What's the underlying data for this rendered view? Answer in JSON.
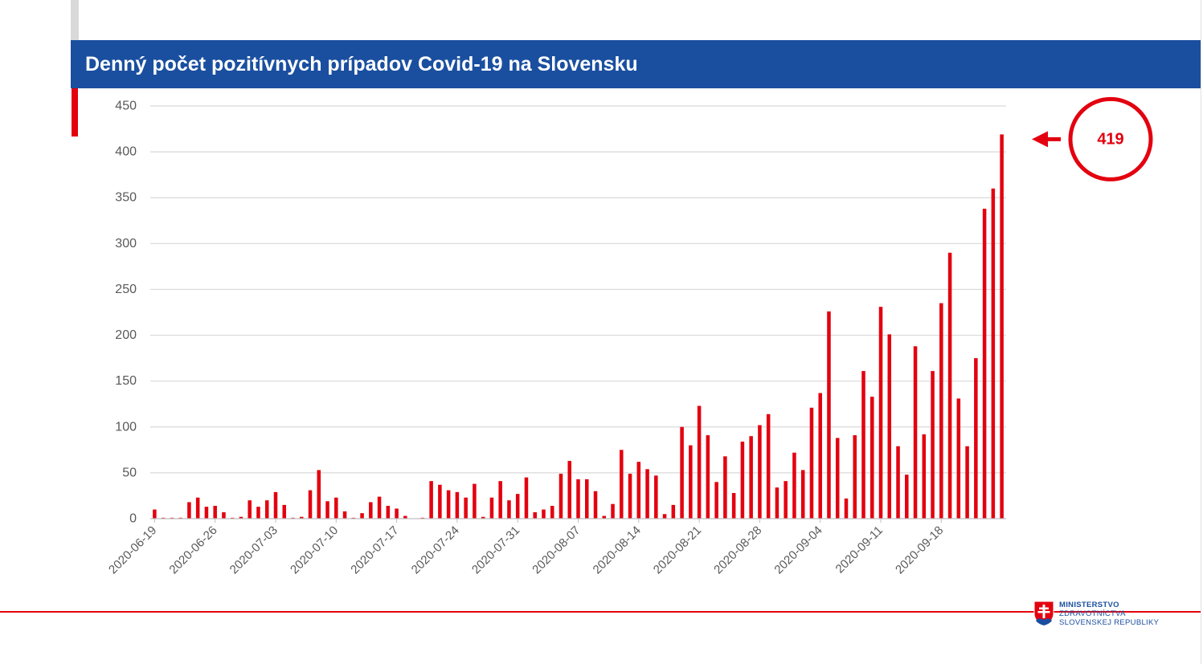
{
  "slide": {
    "title": "Denný počet pozitívnych prípadov Covid-19 na Slovensku",
    "logo": {
      "line1": "MINISTERSTVO",
      "line2": "ZDRAVOTNÍCTVA",
      "line3": "SLOVENSKEJ REPUBLIKY",
      "icon": "slovak-coat-of-arms-icon"
    },
    "colors": {
      "banner": "#1a4fa0",
      "bars": "#e3000f",
      "accent_red": "#e3000f"
    }
  },
  "chart_data": {
    "type": "bar",
    "title": "",
    "xlabel": "",
    "ylabel": "",
    "ylim": [
      0,
      450
    ],
    "yticks": [
      0,
      50,
      100,
      150,
      200,
      250,
      300,
      350,
      400,
      450
    ],
    "grid": true,
    "x_start": "2020-06-19",
    "x_tick_labels": [
      "2020-06-19",
      "2020-06-26",
      "2020-07-03",
      "2020-07-10",
      "2020-07-17",
      "2020-07-24",
      "2020-07-31",
      "2020-08-07",
      "2020-08-14",
      "2020-08-21",
      "2020-08-28",
      "2020-09-04",
      "2020-09-11",
      "2020-09-18"
    ],
    "series": [
      {
        "values": [
          10,
          1,
          1,
          1,
          18,
          23,
          13,
          14,
          7,
          1,
          2,
          20,
          13,
          20,
          29,
          15,
          1,
          2,
          31,
          53,
          19,
          23,
          8,
          1,
          6,
          18,
          24,
          14,
          11,
          3,
          0,
          1,
          41,
          37,
          31,
          29,
          23,
          38,
          2,
          23,
          41,
          20,
          27,
          45,
          7,
          10,
          14,
          49,
          63,
          43,
          43,
          30,
          3,
          16,
          75,
          49,
          62,
          54,
          47,
          5,
          15,
          100,
          80,
          123,
          91,
          40,
          68,
          28,
          84,
          90,
          102,
          114,
          34,
          41,
          72,
          53,
          121,
          137,
          226,
          88,
          22,
          91,
          161,
          133,
          231,
          201,
          79,
          48,
          188,
          92,
          161,
          235,
          290,
          131,
          79,
          175,
          338,
          360,
          419
        ]
      }
    ],
    "annotation": {
      "value_label": "419",
      "shape": "circle",
      "arrow": "pointing-left-at-last-bar"
    }
  }
}
